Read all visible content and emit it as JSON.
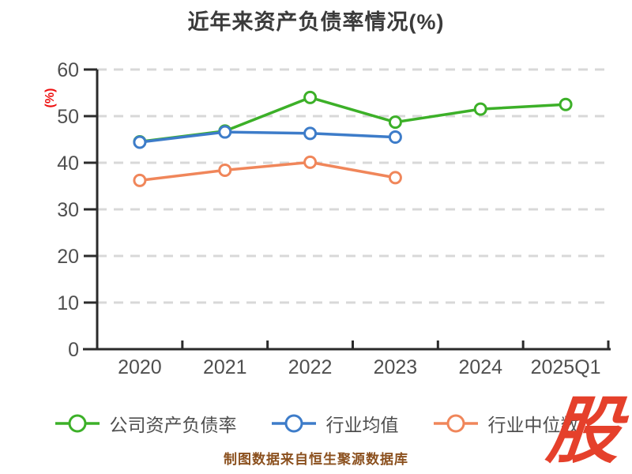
{
  "title": "近年来资产负债率情况(%)",
  "y_axis_label": "(%)",
  "caption": "制图数据来自恒生聚源数据库",
  "watermark": "股",
  "colors": {
    "background": "#ffffff",
    "title_text": "#3b3b3b",
    "axis": "#2b2b2b",
    "grid": "#d8d8d8",
    "tick_label": "#4f4f4f",
    "legend_text": "#4f4f4f",
    "y_axis_label": "#ee1111",
    "caption_text": "#8b501e",
    "watermark_red": "#e5402b",
    "marker_fill": "#ffffff",
    "series_company": "#3cb028",
    "series_industry_avg": "#3d7cc9",
    "series_industry_median": "#f0865a"
  },
  "chart_data": {
    "type": "line",
    "title": "近年来资产负债率情况(%)",
    "xlabel": "",
    "ylabel": "(%)",
    "categories": [
      "2020",
      "2021",
      "2022",
      "2023",
      "2024",
      "2025Q1"
    ],
    "series": [
      {
        "name": "公司资产负债率",
        "color_key": "series_company",
        "values": [
          44.5,
          46.8,
          54.0,
          48.7,
          51.5,
          52.5
        ]
      },
      {
        "name": "行业均值",
        "color_key": "series_industry_avg",
        "values": [
          44.4,
          46.6,
          46.3,
          45.5,
          null,
          null
        ]
      },
      {
        "name": "行业中位数",
        "color_key": "series_industry_median",
        "values": [
          36.2,
          38.4,
          40.1,
          36.8,
          null,
          null
        ]
      }
    ],
    "ylim": [
      0,
      60
    ],
    "yticks": [
      0,
      10,
      20,
      30,
      40,
      50,
      60
    ],
    "grid": "horizontal dashed",
    "legend_position": "bottom",
    "marker_style": "circle, white fill, colored ring"
  }
}
